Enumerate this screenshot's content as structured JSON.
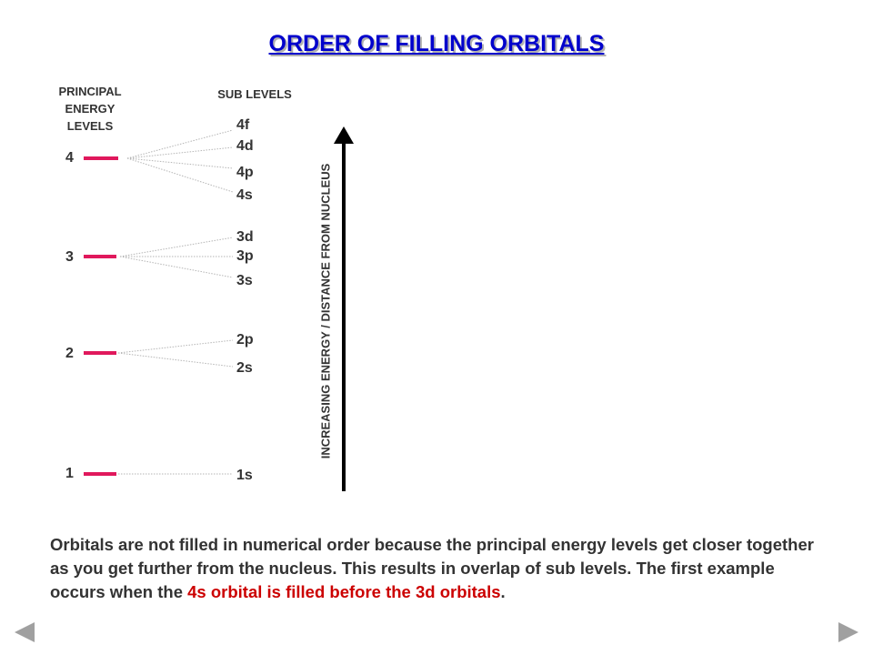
{
  "title": "ORDER OF FILLING ORBITALS",
  "headers": {
    "principal": [
      "PRINCIPAL",
      "ENERGY",
      "LEVELS"
    ],
    "sub": "SUB LEVELS"
  },
  "levels": [
    {
      "number": "4",
      "sublevels": [
        "4f",
        "4d",
        "4p",
        "4s"
      ]
    },
    {
      "number": "3",
      "sublevels": [
        "3d",
        "3p",
        "3s"
      ]
    },
    {
      "number": "2",
      "sublevels": [
        "2p",
        "2s"
      ]
    },
    {
      "number": "1",
      "sublevels": [
        "1s"
      ]
    }
  ],
  "axis_label": "INCREASING ENERGY / DISTANCE FROM NUCLEUS",
  "paragraph": {
    "text": "Orbitals are not filled in numerical order because the principal energy levels get closer together as you get further from the nucleus.  This results in overlap of sub levels. The first example occurs when the ",
    "highlight": "4s orbital is filled before the 3d orbitals",
    "end": "."
  },
  "colors": {
    "title": "#0000cc",
    "level_bar": "#e0185c",
    "highlight": "#cc0000",
    "text": "#333333",
    "nav": "#a0a0a0"
  },
  "nav": {
    "prev_icon": "triangle-left-icon",
    "next_icon": "triangle-right-icon"
  }
}
